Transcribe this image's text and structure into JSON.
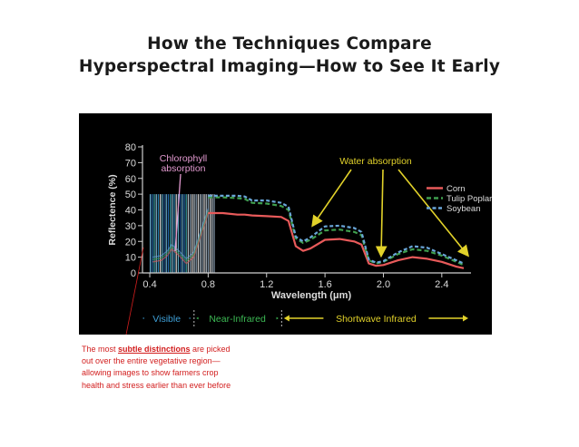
{
  "slide": {
    "title_line1": "How the Techniques Compare",
    "title_line2": "Hyperspectral Imaging—How to See It Early"
  },
  "caption": {
    "before": "The most ",
    "emphasis": "subtle distinctions",
    "after": " are picked out over the entire vegetative region—allowing images to show farmers crop health and stress earlier than ever before"
  },
  "colors": {
    "corn": "#e85a5a",
    "tulip_poplar": "#3f9e4e",
    "soybean": "#6aa6d8",
    "arrow": "#e2d22a",
    "visible_band": "#3fa0d8",
    "near_infrared_band": "#3dbb55",
    "shortwave_band": "#e2d22a"
  },
  "chart_data": {
    "type": "line",
    "xlabel": "Wavelength (μm)",
    "ylabel": "Reflectence (%)",
    "xlim": [
      0.35,
      2.6
    ],
    "ylim": [
      0,
      80
    ],
    "x_ticks": [
      "0.4",
      "0.8",
      "1.2",
      "1.6",
      "2.0",
      "2.4"
    ],
    "y_ticks": [
      "0",
      "10",
      "20",
      "30",
      "40",
      "50",
      "60",
      "70",
      "80"
    ],
    "legend_position": "right",
    "series": [
      {
        "name": "Corn",
        "points": [
          [
            0.8,
            38
          ],
          [
            0.9,
            38
          ],
          [
            1.0,
            37
          ],
          [
            1.05,
            37
          ],
          [
            1.1,
            36.5
          ],
          [
            1.2,
            36
          ],
          [
            1.3,
            35.5
          ],
          [
            1.35,
            33
          ],
          [
            1.4,
            17
          ],
          [
            1.45,
            14
          ],
          [
            1.5,
            15.5
          ],
          [
            1.6,
            21
          ],
          [
            1.7,
            21.5
          ],
          [
            1.8,
            20
          ],
          [
            1.85,
            18
          ],
          [
            1.9,
            6
          ],
          [
            1.95,
            4.5
          ],
          [
            2.0,
            5
          ],
          [
            2.1,
            8
          ],
          [
            2.2,
            10
          ],
          [
            2.3,
            9
          ],
          [
            2.4,
            7
          ],
          [
            2.5,
            4
          ],
          [
            2.55,
            3
          ]
        ]
      },
      {
        "name": "Tulip Poplar",
        "points": [
          [
            0.8,
            48
          ],
          [
            0.9,
            48
          ],
          [
            1.0,
            47.5
          ],
          [
            1.05,
            47
          ],
          [
            1.1,
            44.5
          ],
          [
            1.2,
            44
          ],
          [
            1.3,
            42.5
          ],
          [
            1.35,
            40
          ],
          [
            1.4,
            22
          ],
          [
            1.45,
            19
          ],
          [
            1.5,
            21
          ],
          [
            1.6,
            27
          ],
          [
            1.7,
            27.5
          ],
          [
            1.8,
            26
          ],
          [
            1.85,
            24
          ],
          [
            1.9,
            8
          ],
          [
            1.95,
            6
          ],
          [
            2.0,
            7
          ],
          [
            2.1,
            12
          ],
          [
            2.2,
            15
          ],
          [
            2.3,
            14
          ],
          [
            2.4,
            11
          ],
          [
            2.5,
            7
          ],
          [
            2.55,
            5
          ]
        ]
      },
      {
        "name": "Soybean",
        "points": [
          [
            0.8,
            49
          ],
          [
            0.9,
            49
          ],
          [
            1.0,
            49
          ],
          [
            1.05,
            48.5
          ],
          [
            1.1,
            46
          ],
          [
            1.2,
            46
          ],
          [
            1.3,
            44.5
          ],
          [
            1.35,
            42
          ],
          [
            1.4,
            23
          ],
          [
            1.45,
            20
          ],
          [
            1.5,
            22.5
          ],
          [
            1.6,
            29.5
          ],
          [
            1.7,
            30
          ],
          [
            1.8,
            28.5
          ],
          [
            1.85,
            26
          ],
          [
            1.9,
            8.5
          ],
          [
            1.95,
            6.5
          ],
          [
            2.0,
            7.5
          ],
          [
            2.1,
            13
          ],
          [
            2.2,
            17
          ],
          [
            2.3,
            16
          ],
          [
            2.4,
            12
          ],
          [
            2.5,
            8
          ],
          [
            2.55,
            6
          ]
        ]
      }
    ],
    "annotations": {
      "chlorophyll": [
        "Chlorophyll",
        "absorption"
      ],
      "water": "Water absorption"
    },
    "regions": [
      {
        "label": "Visible",
        "from": 0.4,
        "to": 0.7
      },
      {
        "label": "Near-Infrared",
        "from": 0.7,
        "to": 1.3
      },
      {
        "label": "Shortwave Infrared",
        "from": 1.3,
        "to": 2.6
      }
    ]
  }
}
